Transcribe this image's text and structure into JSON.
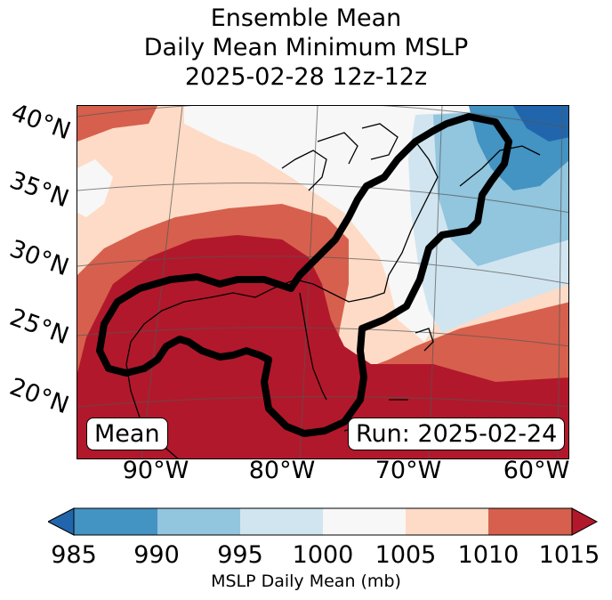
{
  "title": {
    "line1": "Ensemble Mean",
    "line2": "Daily Mean Minimum MSLP",
    "line3": "2025-02-28 12z-12z"
  },
  "map": {
    "lat_labels": [
      "40°N",
      "35°N",
      "30°N",
      "25°N",
      "20°N"
    ],
    "lon_labels": [
      "90°W",
      "80°W",
      "70°W",
      "60°W"
    ],
    "mean_box": "Mean",
    "run_box": "Run: 2025-02-24"
  },
  "colorbar": {
    "ticks": [
      "985",
      "990",
      "995",
      "1000",
      "1005",
      "1010",
      "1015"
    ],
    "label": "MSLP Daily Mean (mb)",
    "colors": {
      "below": "#2166ac",
      "c985_990": "#4393c3",
      "c990_995": "#92c5de",
      "c995_1000": "#d1e5f0",
      "c1000_1005": "#f7f7f7",
      "c1005_1010": "#fddbc7",
      "c1010_1015": "#d6604d",
      "above": "#b2182b"
    }
  }
}
